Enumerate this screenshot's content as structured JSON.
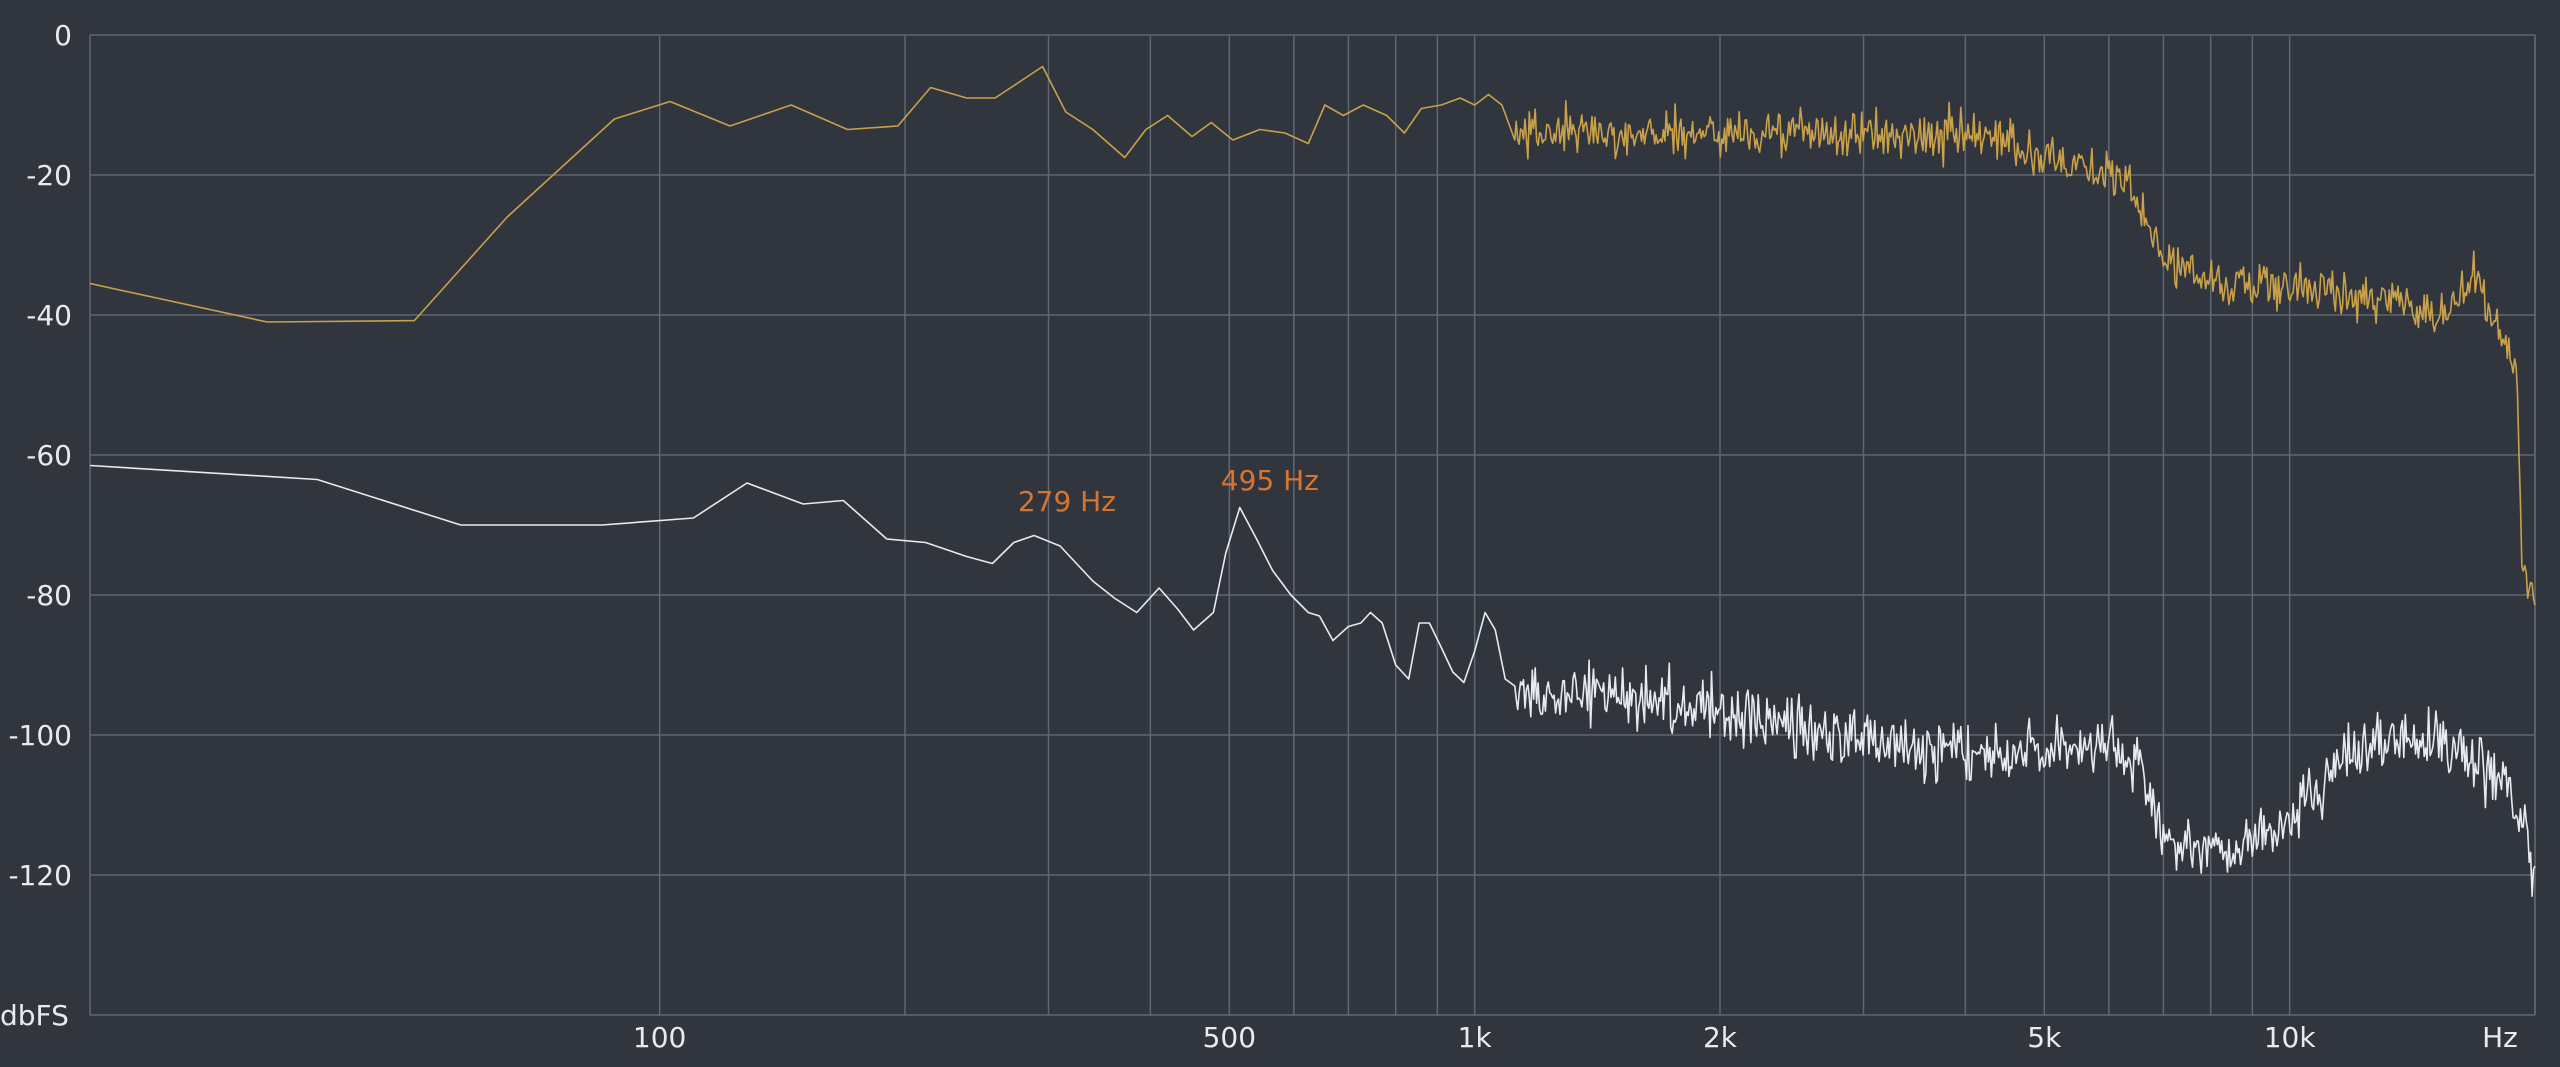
{
  "chart_data": {
    "type": "line",
    "x_scale": "log",
    "y_unit_label": "dbFS",
    "x_unit_label": "Hz",
    "xlim": [
      20,
      20000
    ],
    "ylim": [
      -140,
      0
    ],
    "grid": true,
    "y_ticks": [
      {
        "value": 0,
        "label": "0"
      },
      {
        "value": -20,
        "label": "-20"
      },
      {
        "value": -40,
        "label": "-40"
      },
      {
        "value": -60,
        "label": "-60"
      },
      {
        "value": -80,
        "label": "-80"
      },
      {
        "value": -100,
        "label": "-100"
      },
      {
        "value": -120,
        "label": "-120"
      }
    ],
    "x_ticks": [
      {
        "value": 100,
        "label": "100"
      },
      {
        "value": 500,
        "label": "500"
      },
      {
        "value": 1000,
        "label": "1k"
      },
      {
        "value": 2000,
        "label": "2k"
      },
      {
        "value": 5000,
        "label": "5k"
      },
      {
        "value": 10000,
        "label": "10k"
      }
    ],
    "x_gridlines": [
      100,
      200,
      300,
      400,
      500,
      600,
      700,
      800,
      900,
      1000,
      2000,
      3000,
      4000,
      5000,
      6000,
      7000,
      8000,
      9000,
      10000,
      20000
    ],
    "annotations": [
      {
        "text": "279 Hz",
        "x": 279,
        "y": -70
      },
      {
        "text": "495 Hz",
        "x": 495,
        "y": -67
      }
    ],
    "series": [
      {
        "color": "#c9a14a",
        "points": [
          [
            20,
            -35.5
          ],
          [
            33,
            -41
          ],
          [
            50,
            -40.8
          ],
          [
            65,
            -26
          ],
          [
            88,
            -12
          ],
          [
            103,
            -9.5
          ],
          [
            122,
            -13
          ],
          [
            145,
            -10
          ],
          [
            170,
            -13.5
          ],
          [
            196,
            -13
          ],
          [
            215,
            -7.5
          ],
          [
            238,
            -9
          ],
          [
            258,
            -9
          ],
          [
            278,
            -6.5
          ],
          [
            295,
            -4.5
          ],
          [
            315,
            -11
          ],
          [
            340,
            -13.5
          ],
          [
            372,
            -17.5
          ],
          [
            395,
            -13.5
          ],
          [
            420,
            -11.5
          ],
          [
            450,
            -14.5
          ],
          [
            475,
            -12.5
          ],
          [
            505,
            -15
          ],
          [
            545,
            -13.5
          ],
          [
            585,
            -14
          ],
          [
            625,
            -15.5
          ],
          [
            655,
            -10
          ],
          [
            690,
            -11.5
          ],
          [
            730,
            -10
          ],
          [
            780,
            -11.5
          ],
          [
            820,
            -14
          ],
          [
            860,
            -10.5
          ],
          [
            910,
            -10
          ],
          [
            960,
            -9
          ],
          [
            1000,
            -10
          ],
          [
            1040,
            -8.5
          ],
          [
            1080,
            -10
          ],
          [
            1120,
            -15
          ]
        ]
      },
      {
        "color": "#e8eaee",
        "points": [
          [
            20,
            -61.5
          ],
          [
            38,
            -63.5
          ],
          [
            57,
            -70
          ],
          [
            85,
            -70
          ],
          [
            110,
            -69
          ],
          [
            128,
            -64
          ],
          [
            150,
            -67
          ],
          [
            168,
            -66.5
          ],
          [
            190,
            -72
          ],
          [
            212,
            -72.5
          ],
          [
            238,
            -74.5
          ],
          [
            256,
            -75.5
          ],
          [
            272,
            -72.5
          ],
          [
            288,
            -71.5
          ],
          [
            310,
            -73
          ],
          [
            340,
            -78
          ],
          [
            362,
            -80.5
          ],
          [
            385,
            -82.5
          ],
          [
            410,
            -79
          ],
          [
            432,
            -82
          ],
          [
            452,
            -85
          ],
          [
            478,
            -82.5
          ],
          [
            495,
            -74
          ],
          [
            515,
            -67.5
          ],
          [
            540,
            -72
          ],
          [
            565,
            -76.5
          ],
          [
            595,
            -80
          ],
          [
            625,
            -82.5
          ],
          [
            645,
            -83
          ],
          [
            670,
            -86.5
          ],
          [
            700,
            -84.5
          ],
          [
            725,
            -84
          ],
          [
            745,
            -82.5
          ],
          [
            770,
            -84
          ],
          [
            800,
            -90
          ],
          [
            830,
            -92
          ],
          [
            855,
            -84
          ],
          [
            880,
            -84
          ],
          [
            910,
            -87.5
          ],
          [
            940,
            -91
          ],
          [
            970,
            -92.5
          ],
          [
            1000,
            -88
          ],
          [
            1030,
            -82.5
          ],
          [
            1060,
            -85
          ],
          [
            1090,
            -92
          ],
          [
            1120,
            -93
          ]
        ]
      }
    ]
  }
}
